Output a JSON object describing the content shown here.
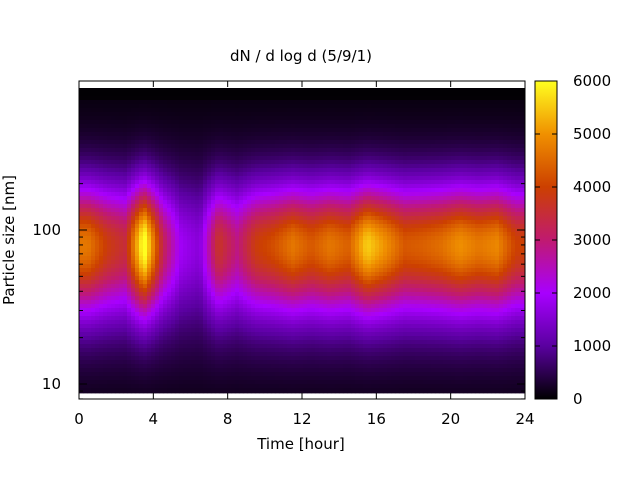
{
  "chart_data": {
    "type": "heatmap",
    "title": "dN / d log d (5/9/1)",
    "xlabel": "Time [hour]",
    "ylabel": "Particle size [nm]",
    "xlim": [
      0,
      24
    ],
    "x_ticks": [
      0,
      4,
      8,
      12,
      16,
      20,
      24
    ],
    "y_scale": "log",
    "ylim": [
      8,
      230
    ],
    "y_ticks": [
      10,
      100
    ],
    "colorbar": {
      "range": [
        0,
        6000
      ],
      "ticks": [
        0,
        1000,
        2000,
        3000,
        4000,
        5000,
        6000
      ],
      "colors": [
        "#000000",
        "#5a00a0",
        "#a800ff",
        "#c01a70",
        "#cc4000",
        "#f09000",
        "#ffff20"
      ]
    },
    "mode_diameter_nm": 80,
    "x": [
      0.5,
      1.5,
      2.5,
      3.5,
      4.5,
      5.5,
      6.5,
      7.5,
      8.5,
      9.5,
      10.5,
      11.5,
      12.5,
      13.5,
      14.5,
      15.5,
      16.5,
      17.5,
      18.5,
      19.5,
      20.5,
      21.5,
      22.5,
      23.5
    ],
    "peak_concentration": [
      4000,
      3200,
      2800,
      5600,
      2600,
      1200,
      900,
      3000,
      2200,
      3200,
      3500,
      4000,
      3600,
      4000,
      3700,
      4900,
      4300,
      3600,
      3700,
      3900,
      4300,
      4000,
      4200,
      3300
    ]
  }
}
